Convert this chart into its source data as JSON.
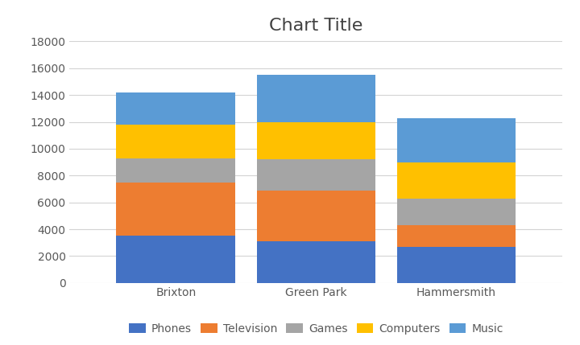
{
  "title": "Chart Title",
  "categories": [
    "Brixton",
    "Green Park",
    "Hammersmith"
  ],
  "series": [
    {
      "name": "Phones",
      "values": [
        3500,
        3100,
        2700
      ],
      "color": "#4472C4"
    },
    {
      "name": "Television",
      "values": [
        4000,
        3800,
        1600
      ],
      "color": "#ED7D31"
    },
    {
      "name": "Games",
      "values": [
        1800,
        2300,
        2000
      ],
      "color": "#A5A5A5"
    },
    {
      "name": "Computers",
      "values": [
        2500,
        2800,
        2700
      ],
      "color": "#FFC000"
    },
    {
      "name": "Music",
      "values": [
        2400,
        3500,
        3300
      ],
      "color": "#5B9BD5"
    }
  ],
  "ylim": [
    0,
    18000
  ],
  "yticks": [
    0,
    2000,
    4000,
    6000,
    8000,
    10000,
    12000,
    14000,
    16000,
    18000
  ],
  "bar_width": 0.28,
  "title_fontsize": 16,
  "tick_fontsize": 10,
  "legend_fontsize": 10,
  "background_color": "#FFFFFF",
  "grid_color": "#D3D3D3",
  "title_color": "#404040",
  "tick_color": "#595959"
}
